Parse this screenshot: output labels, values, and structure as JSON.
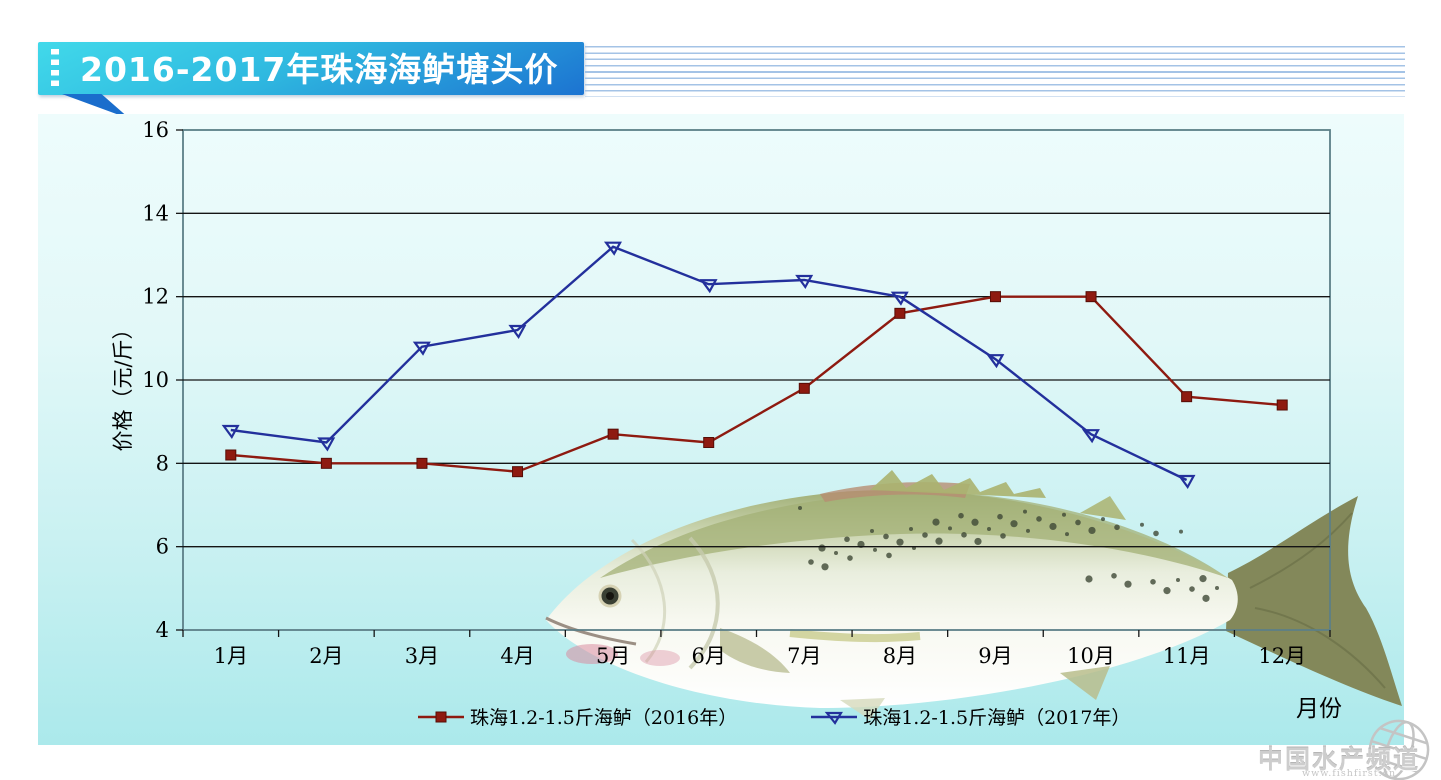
{
  "header": {
    "title": "2016-2017年珠海海鲈塘头价"
  },
  "chart_data": {
    "type": "line",
    "title": "2016-2017年珠海海鲈塘头价",
    "categories": [
      "1月",
      "2月",
      "3月",
      "4月",
      "5月",
      "6月",
      "7月",
      "8月",
      "9月",
      "10月",
      "11月",
      "12月"
    ],
    "series": [
      {
        "name": "珠海1.2-1.5斤海鲈（2016年）",
        "color": "#8e1a10",
        "marker": "square",
        "values": [
          8.2,
          8.0,
          8.0,
          7.8,
          8.7,
          8.5,
          9.8,
          11.6,
          12.0,
          12.0,
          9.6,
          9.4
        ]
      },
      {
        "name": "珠海1.2-1.5斤海鲈（2017年）",
        "color": "#23309c",
        "marker": "triangle",
        "values": [
          8.8,
          8.5,
          10.8,
          11.2,
          13.2,
          12.3,
          12.4,
          12.0,
          10.5,
          8.7,
          7.6,
          null
        ]
      }
    ],
    "xlabel": "月份",
    "ylabel": "价格（元/斤）",
    "ylim": [
      4,
      16
    ],
    "yticks": [
      4,
      6,
      8,
      10,
      12,
      14,
      16
    ],
    "grid": true,
    "legend_position": "bottom"
  },
  "watermark": {
    "brand": "中国水产频道",
    "url": "www.fishfirst.cn"
  },
  "colors": {
    "banner_top": "#41d9ea",
    "banner_bottom": "#1c73d1",
    "panel_top": "#edfbfb",
    "panel_bottom": "#abe9eb",
    "gridline": "#141414",
    "frame": "#5c7f87",
    "series_2016": "#8e1a10",
    "series_2017": "#23309c",
    "stripe": "#a4c3e6",
    "watermark_grey": "#cdcdcd"
  }
}
